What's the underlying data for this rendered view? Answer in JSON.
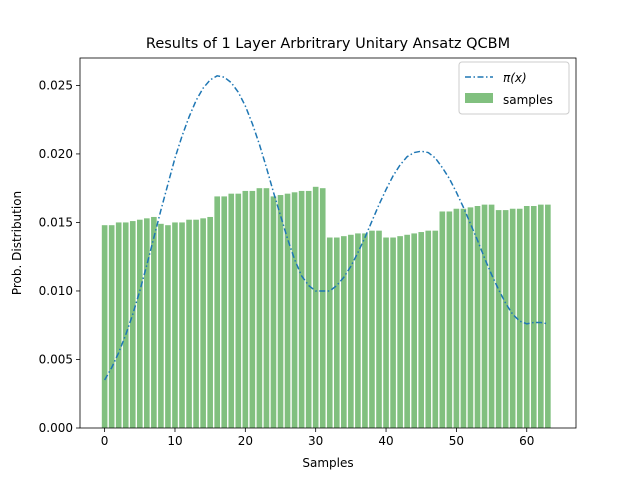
{
  "chart_data": {
    "type": "bar",
    "title": "Results of 1 Layer Arbritrary Unitary Ansatz QCBM",
    "xlabel": "Samples",
    "ylabel": "Prob. Distribution",
    "xlim": [
      -3.5,
      67
    ],
    "ylim": [
      0,
      0.027
    ],
    "xticks": [
      0,
      10,
      20,
      30,
      40,
      50,
      60
    ],
    "xtick_labels": [
      "0",
      "10",
      "20",
      "30",
      "40",
      "50",
      "60"
    ],
    "yticks": [
      0,
      0.005,
      0.01,
      0.015,
      0.02,
      0.025
    ],
    "ytick_labels": [
      "0.000",
      "0.005",
      "0.010",
      "0.015",
      "0.020",
      "0.025"
    ],
    "legend_position": "top-right",
    "series": [
      {
        "name": "π(x)",
        "kind": "line",
        "style": "dash-dot",
        "color": "#1f77b4",
        "x": [
          0,
          1,
          2,
          3,
          4,
          5,
          6,
          7,
          8,
          9,
          10,
          11,
          12,
          13,
          14,
          15,
          16,
          17,
          18,
          19,
          20,
          21,
          22,
          23,
          24,
          25,
          26,
          27,
          28,
          29,
          30,
          31,
          32,
          33,
          34,
          35,
          36,
          37,
          38,
          39,
          40,
          41,
          42,
          43,
          44,
          45,
          46,
          47,
          48,
          49,
          50,
          51,
          52,
          53,
          54,
          55,
          56,
          57,
          58,
          59,
          60,
          61,
          62,
          63
        ],
        "values": [
          0.0035,
          0.0044,
          0.0055,
          0.0068,
          0.0083,
          0.01,
          0.0119,
          0.0139,
          0.0159,
          0.0178,
          0.0197,
          0.0213,
          0.0227,
          0.0239,
          0.0248,
          0.0254,
          0.0257,
          0.0256,
          0.0252,
          0.0245,
          0.0235,
          0.0222,
          0.0207,
          0.019,
          0.0172,
          0.0155,
          0.0138,
          0.0123,
          0.0111,
          0.0104,
          0.01,
          0.01,
          0.01,
          0.0104,
          0.011,
          0.0118,
          0.0128,
          0.0139,
          0.0151,
          0.0163,
          0.0174,
          0.0184,
          0.0192,
          0.0198,
          0.0201,
          0.0202,
          0.0201,
          0.0197,
          0.019,
          0.0182,
          0.0172,
          0.0161,
          0.0149,
          0.0137,
          0.0124,
          0.0112,
          0.0101,
          0.0091,
          0.0083,
          0.0078,
          0.0076,
          0.0077,
          0.0077,
          0.0076
        ]
      },
      {
        "name": "samples",
        "kind": "bar",
        "color": "#81c07f",
        "x": [
          0,
          1,
          2,
          3,
          4,
          5,
          6,
          7,
          8,
          9,
          10,
          11,
          12,
          13,
          14,
          15,
          16,
          17,
          18,
          19,
          20,
          21,
          22,
          23,
          24,
          25,
          26,
          27,
          28,
          29,
          30,
          31,
          32,
          33,
          34,
          35,
          36,
          37,
          38,
          39,
          40,
          41,
          42,
          43,
          44,
          45,
          46,
          47,
          48,
          49,
          50,
          51,
          52,
          53,
          54,
          55,
          56,
          57,
          58,
          59,
          60,
          61,
          62,
          63
        ],
        "values": [
          0.0148,
          0.0148,
          0.015,
          0.015,
          0.0151,
          0.0152,
          0.0153,
          0.0154,
          0.0149,
          0.0148,
          0.015,
          0.015,
          0.0152,
          0.0152,
          0.0153,
          0.0154,
          0.0169,
          0.0169,
          0.0171,
          0.0171,
          0.0173,
          0.0173,
          0.0175,
          0.0175,
          0.0169,
          0.017,
          0.0171,
          0.0172,
          0.0173,
          0.0173,
          0.0176,
          0.0175,
          0.0139,
          0.0139,
          0.014,
          0.0141,
          0.0142,
          0.0142,
          0.0144,
          0.0144,
          0.0139,
          0.0139,
          0.014,
          0.0141,
          0.0142,
          0.0143,
          0.0144,
          0.0144,
          0.0158,
          0.0158,
          0.016,
          0.016,
          0.0161,
          0.0162,
          0.0163,
          0.0163,
          0.0159,
          0.0159,
          0.016,
          0.016,
          0.0162,
          0.0162,
          0.0163,
          0.0163
        ]
      }
    ]
  }
}
